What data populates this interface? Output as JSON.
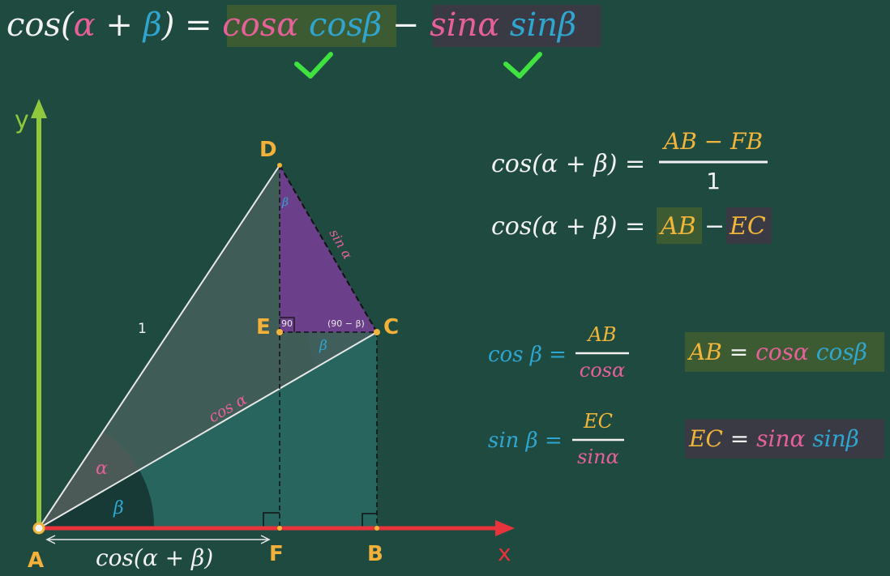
{
  "title_formula": {
    "lhs_cos": "cos",
    "lp": "(",
    "alpha": "α",
    "plus": " + ",
    "beta": "β",
    "rp": ")",
    "eq": " = ",
    "t1a": "cosα",
    "t1b": " cosβ",
    "minus": " − ",
    "t2a": "sinα",
    "t2b": " sinβ",
    "check": "✓"
  },
  "diagram": {
    "axis_y": "y",
    "axis_x": "x",
    "points": {
      "A": "A",
      "B": "B",
      "C": "C",
      "D": "D",
      "E": "E",
      "F": "F"
    },
    "label_hyp": "1",
    "label_cos_alpha": "cos α",
    "label_sin_alpha": "sin α",
    "angle_alpha": "α",
    "angle_beta": "β",
    "angle_beta_c": "β",
    "angle_beta_d": "β",
    "angle_90": "90",
    "angle_90_minus": "(90 − β)",
    "bottom_label": "cos(α + β)"
  },
  "right_equations": {
    "eq1": {
      "lhs": "cos(α + β) =",
      "num": "AB − FB",
      "den": "1"
    },
    "eq2": {
      "lhs": "cos(α + β) =",
      "ab": "AB",
      "minus": "−",
      "ec": "EC"
    },
    "eq3": {
      "lhs": "cos β =",
      "num": "AB",
      "den": "cosα"
    },
    "eq4": {
      "lhs": "sin β =",
      "num": "EC",
      "den": "sinα"
    },
    "res1": {
      "ab": "AB",
      "eq": "=",
      "a": "cosα",
      "b": "cosβ"
    },
    "res2": {
      "ec": "EC",
      "eq": "=",
      "a": "sinα",
      "b": "sinβ"
    }
  },
  "colors": {
    "background": "#1f4a40",
    "pink": "#e6619a",
    "blue": "#2fa6cf",
    "yellow": "#f0b53a",
    "green_check": "#3fe23f",
    "axis_green": "#8fc83c",
    "axis_red": "#e8323c",
    "purple_triangle": "#6b3f8a"
  }
}
